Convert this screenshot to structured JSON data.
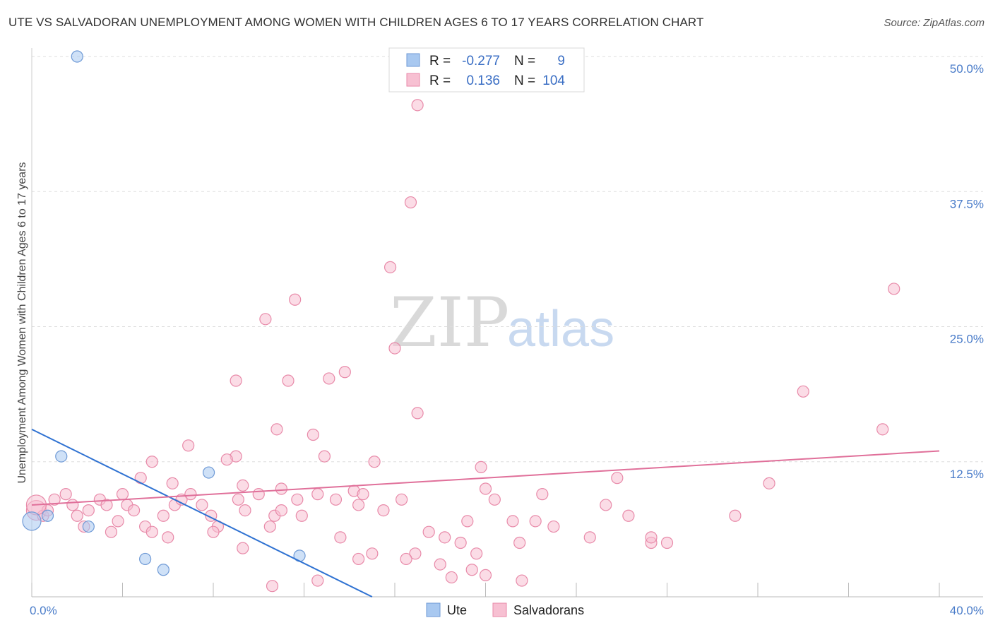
{
  "title": "UTE VS SALVADORAN UNEMPLOYMENT AMONG WOMEN WITH CHILDREN AGES 6 TO 17 YEARS CORRELATION CHART",
  "source": "Source: ZipAtlas.com",
  "watermark": {
    "zip": "ZIP",
    "atlas": "atlas"
  },
  "legend": {
    "r_label": "R =",
    "n_label": "N =",
    "ute": {
      "r": "-0.277",
      "n": "9"
    },
    "salvadorans": {
      "r": "0.136",
      "n": "104"
    }
  },
  "colors": {
    "ute_fill": "#a8c8f0",
    "ute_stroke": "#6f9ad6",
    "ute_line": "#2f72d2",
    "salv_fill": "#f7c0d2",
    "salv_stroke": "#e88aa9",
    "salv_line": "#e0709a",
    "tick_text": "#4a7cc9",
    "grid": "#dddddd"
  },
  "chart_data": {
    "type": "scatter",
    "xlabel": "",
    "ylabel": "Unemployment Among Women with Children Ages 6 to 17 years",
    "xlim": [
      0,
      40
    ],
    "ylim": [
      0,
      50
    ],
    "x_tick_labels": [
      "0.0%",
      "40.0%"
    ],
    "y_ticks": [
      12.5,
      25.0,
      37.5,
      50.0
    ],
    "y_tick_labels": [
      "12.5%",
      "25.0%",
      "37.5%",
      "50.0%"
    ],
    "grid": "horizontal dashed",
    "legend_position": "top-center",
    "series": [
      {
        "name": "Ute",
        "points": [
          [
            2.0,
            50.0
          ],
          [
            1.3,
            13.0
          ],
          [
            0.0,
            7.0
          ],
          [
            0.7,
            7.5
          ],
          [
            2.5,
            6.5
          ],
          [
            7.8,
            11.5
          ],
          [
            5.0,
            3.5
          ],
          [
            5.8,
            2.5
          ],
          [
            11.8,
            3.8
          ]
        ],
        "trend": [
          [
            0,
            15.5
          ],
          [
            15,
            0
          ]
        ]
      },
      {
        "name": "Salvadorans",
        "points": [
          [
            17.0,
            45.5
          ],
          [
            16.7,
            36.5
          ],
          [
            15.8,
            30.5
          ],
          [
            11.6,
            27.5
          ],
          [
            10.3,
            25.7
          ],
          [
            16.0,
            23.0
          ],
          [
            38.0,
            28.5
          ],
          [
            9.0,
            20.0
          ],
          [
            11.3,
            20.0
          ],
          [
            13.1,
            20.2
          ],
          [
            13.8,
            20.8
          ],
          [
            17.0,
            17.0
          ],
          [
            34.0,
            19.0
          ],
          [
            37.5,
            15.5
          ],
          [
            10.8,
            15.5
          ],
          [
            12.4,
            15.0
          ],
          [
            6.9,
            14.0
          ],
          [
            9.0,
            13.0
          ],
          [
            12.9,
            13.0
          ],
          [
            8.6,
            12.7
          ],
          [
            5.3,
            12.5
          ],
          [
            15.1,
            12.5
          ],
          [
            19.8,
            12.0
          ],
          [
            4.8,
            11.0
          ],
          [
            25.8,
            11.0
          ],
          [
            6.2,
            10.5
          ],
          [
            9.3,
            10.3
          ],
          [
            11.0,
            10.0
          ],
          [
            20.0,
            10.0
          ],
          [
            32.5,
            10.5
          ],
          [
            0.2,
            8.0
          ],
          [
            0.5,
            7.5
          ],
          [
            0.7,
            8.0
          ],
          [
            1.0,
            9.0
          ],
          [
            1.5,
            9.5
          ],
          [
            1.8,
            8.5
          ],
          [
            2.0,
            7.5
          ],
          [
            2.5,
            8.0
          ],
          [
            3.0,
            9.0
          ],
          [
            3.3,
            8.5
          ],
          [
            3.8,
            7.0
          ],
          [
            4.0,
            9.5
          ],
          [
            4.2,
            8.5
          ],
          [
            4.5,
            8.0
          ],
          [
            5.0,
            6.5
          ],
          [
            5.3,
            6.0
          ],
          [
            5.8,
            7.5
          ],
          [
            6.3,
            8.5
          ],
          [
            6.6,
            9.0
          ],
          [
            7.0,
            9.5
          ],
          [
            7.5,
            8.5
          ],
          [
            7.9,
            7.5
          ],
          [
            8.2,
            6.5
          ],
          [
            9.1,
            9.0
          ],
          [
            9.4,
            8.0
          ],
          [
            10.0,
            9.5
          ],
          [
            10.5,
            6.5
          ],
          [
            10.7,
            7.5
          ],
          [
            11.0,
            8.0
          ],
          [
            11.7,
            9.0
          ],
          [
            11.9,
            7.5
          ],
          [
            12.6,
            9.5
          ],
          [
            13.4,
            9.0
          ],
          [
            14.2,
            9.8
          ],
          [
            14.4,
            8.5
          ],
          [
            14.6,
            9.5
          ],
          [
            15.5,
            8.0
          ],
          [
            16.3,
            9.0
          ],
          [
            16.9,
            4.0
          ],
          [
            17.5,
            6.0
          ],
          [
            18.0,
            3.0
          ],
          [
            18.2,
            5.5
          ],
          [
            19.2,
            7.0
          ],
          [
            19.6,
            4.0
          ],
          [
            20.4,
            9.0
          ],
          [
            21.2,
            7.0
          ],
          [
            21.5,
            5.0
          ],
          [
            22.2,
            7.0
          ],
          [
            22.5,
            9.5
          ],
          [
            23.0,
            6.5
          ],
          [
            24.6,
            5.5
          ],
          [
            25.3,
            8.5
          ],
          [
            26.3,
            7.5
          ],
          [
            12.6,
            1.5
          ],
          [
            14.4,
            3.5
          ],
          [
            18.9,
            5.0
          ],
          [
            19.4,
            2.5
          ],
          [
            20.0,
            2.0
          ],
          [
            21.6,
            1.5
          ],
          [
            10.6,
            1.0
          ],
          [
            2.3,
            6.5
          ],
          [
            3.5,
            6.0
          ],
          [
            6.0,
            5.5
          ],
          [
            8.0,
            6.0
          ],
          [
            13.6,
            5.5
          ],
          [
            27.3,
            5.0
          ],
          [
            27.3,
            5.5
          ],
          [
            28.0,
            5.0
          ],
          [
            31.0,
            7.5
          ],
          [
            9.3,
            4.5
          ],
          [
            15.0,
            4.0
          ],
          [
            16.5,
            3.5
          ],
          [
            18.5,
            1.8
          ],
          [
            0.2,
            8.5
          ]
        ],
        "trend": [
          [
            0,
            8.5
          ],
          [
            40,
            13.5
          ]
        ]
      }
    ],
    "bottom_legend": [
      "Ute",
      "Salvadorans"
    ]
  }
}
